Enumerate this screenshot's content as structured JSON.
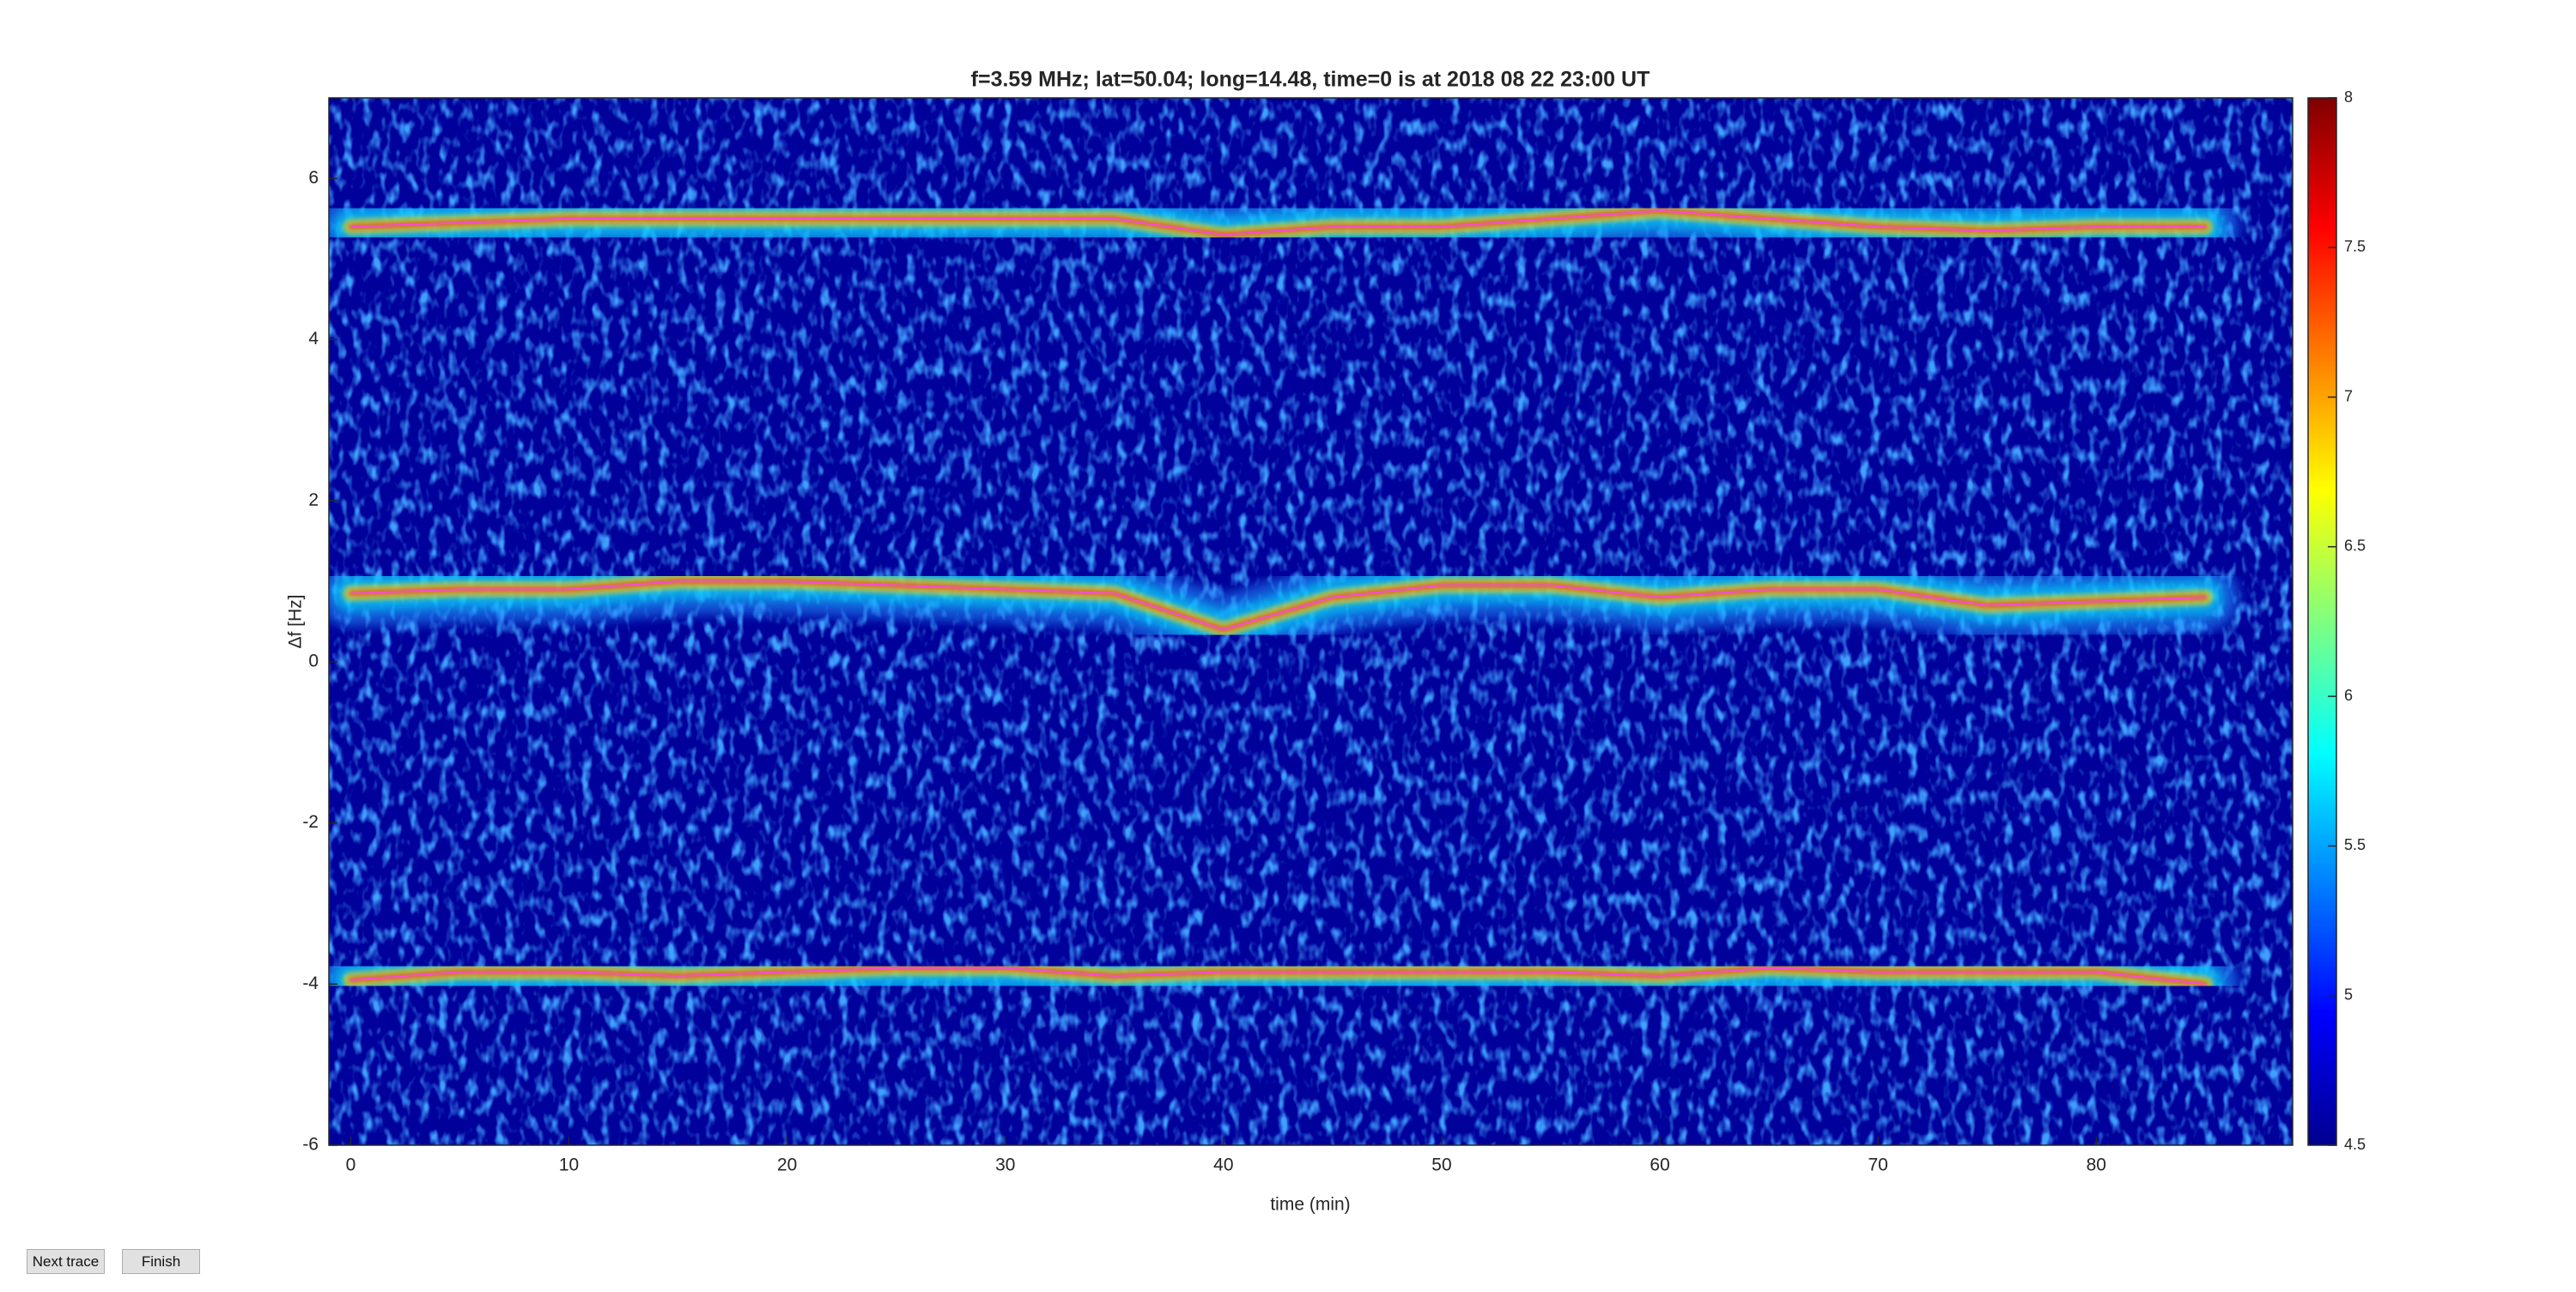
{
  "chart_data": {
    "type": "spectrogram",
    "title": "f=3.59 MHz;  lat=50.04; long=14.48, time=0 is at 2018 08 22 23:00 UT",
    "x_label": "time (min)",
    "y_label": "Δf [Hz]",
    "x": [
      0,
      5,
      10,
      15,
      20,
      25,
      30,
      35,
      40,
      45,
      50,
      55,
      60,
      65,
      70,
      75,
      80,
      85
    ],
    "series": [
      {
        "values": [
          5.4,
          5.45,
          5.5,
          5.5,
          5.5,
          5.5,
          5.5,
          5.5,
          5.3,
          5.4,
          5.4,
          5.5,
          5.6,
          5.5,
          5.4,
          5.35,
          5.4,
          5.4
        ]
      },
      {
        "values": [
          0.85,
          0.9,
          0.9,
          1.0,
          1.0,
          0.95,
          0.9,
          0.85,
          0.4,
          0.8,
          0.95,
          0.95,
          0.8,
          0.9,
          0.9,
          0.7,
          0.75,
          0.8
        ]
      },
      {
        "values": [
          -3.95,
          -3.85,
          -3.85,
          -3.9,
          -3.85,
          -3.8,
          -3.8,
          -3.9,
          -3.85,
          -3.85,
          -3.85,
          -3.85,
          -3.9,
          -3.8,
          -3.85,
          -3.85,
          -3.85,
          -4.0
        ]
      }
    ],
    "trace_color": "#ff40ff",
    "xlim": [
      -1,
      89
    ],
    "xticks": [
      0,
      10,
      20,
      30,
      40,
      50,
      60,
      70,
      80
    ],
    "ylim": [
      -6,
      7
    ],
    "yticks": [
      -6,
      -4,
      -2,
      0,
      2,
      4,
      6
    ],
    "clim": [
      4.5,
      8
    ],
    "cticks": [
      4.5,
      5,
      5.5,
      6,
      6.5,
      7,
      7.5,
      8
    ],
    "colormap": "jet"
  },
  "buttons": [
    "Next trace",
    "Finish"
  ]
}
